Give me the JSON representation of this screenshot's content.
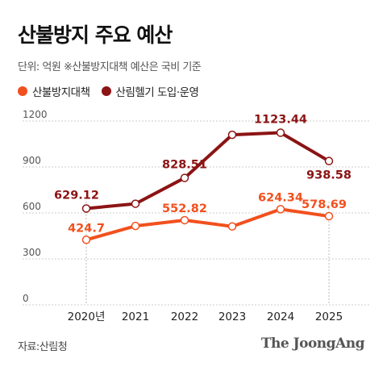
{
  "header": {
    "title": "산불방지 주요 예산",
    "subtitle": "단위: 억원  ※산불방지대책 예산은 국비 기준"
  },
  "footer": {
    "source": "자료:산림청",
    "brand": "The JoongAng"
  },
  "colors": {
    "series1": "#f2501e",
    "series2": "#8c1414",
    "grid": "#cccccc",
    "axis_text": "#555555"
  },
  "chart_data": {
    "type": "line",
    "title": "산불방지 주요 예산",
    "x": [
      "2020년",
      "2021",
      "2022",
      "2023",
      "2024",
      "2025"
    ],
    "ylim": [
      0,
      1200
    ],
    "yticks": [
      0,
      300,
      600,
      900,
      1200
    ],
    "grid": true,
    "legend_position": "top-left",
    "series": [
      {
        "name": "산불방지대책",
        "color": "#f2501e",
        "values": [
          424.7,
          515,
          552.82,
          512,
          624.34,
          578.69
        ],
        "labels": [
          "424.7",
          "",
          "552.82",
          "",
          "624.34",
          "578.69"
        ]
      },
      {
        "name": "산림헬기 도입·운영",
        "color": "#8c1414",
        "values": [
          629.12,
          660,
          828.51,
          1110,
          1123.44,
          938.58
        ],
        "labels": [
          "629.12",
          "",
          "828.51",
          "",
          "1123.44",
          "938.58"
        ]
      }
    ]
  }
}
